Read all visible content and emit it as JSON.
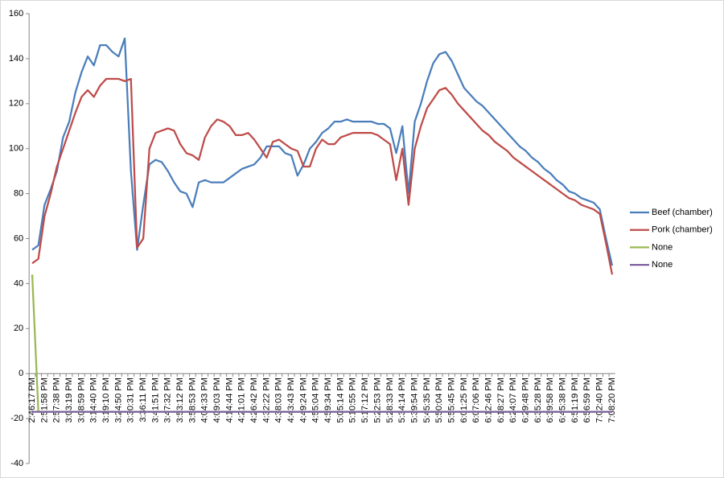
{
  "chart_data": {
    "type": "line",
    "categories": [
      "2:46:17 PM",
      null,
      "2:51:58 PM",
      null,
      "2:57:38 PM",
      null,
      "3:03:19 PM",
      null,
      "3:08:59 PM",
      null,
      "3:14:40 PM",
      null,
      "3:19:10 PM",
      null,
      "3:24:50 PM",
      null,
      "3:30:31 PM",
      null,
      "3:36:11 PM",
      null,
      "3:41:51 PM",
      null,
      "3:47:32 PM",
      null,
      "3:53:12 PM",
      null,
      "3:58:53 PM",
      null,
      "4:04:33 PM",
      null,
      "4:09:03 PM",
      null,
      "4:14:44 PM",
      null,
      "4:21:01 PM",
      null,
      "4:26:42 PM",
      null,
      "4:32:22 PM",
      null,
      "4:38:03 PM",
      null,
      "4:43:43 PM",
      null,
      "4:49:24 PM",
      null,
      "4:55:04 PM",
      null,
      "4:59:34 PM",
      null,
      "5:05:14 PM",
      null,
      "5:10:55 PM",
      null,
      "5:17:12 PM",
      null,
      "5:22:53 PM",
      null,
      "5:28:33 PM",
      null,
      "5:34:14 PM",
      null,
      "5:39:54 PM",
      null,
      "5:45:35 PM",
      null,
      "5:50:04 PM",
      null,
      "5:55:45 PM",
      null,
      "6:01:25 PM",
      null,
      "6:07:06 PM",
      null,
      "6:12:46 PM",
      null,
      "6:18:27 PM",
      null,
      "6:24:07 PM",
      null,
      "6:29:48 PM",
      null,
      "6:35:28 PM",
      null,
      "6:39:58 PM",
      null,
      "6:45:38 PM",
      null,
      "6:51:19 PM",
      null,
      "6:56:59 PM",
      null,
      "7:02:40 PM",
      null,
      "7:08:20 PM"
    ],
    "series": [
      {
        "name": "Beef (chamber)",
        "color": "#4a7ebb",
        "values": [
          55,
          57,
          75,
          82,
          90,
          105,
          112,
          125,
          134,
          141,
          137,
          146,
          146,
          143,
          141,
          149,
          90,
          55,
          75,
          93,
          95,
          94,
          90,
          85,
          81,
          80,
          74,
          85,
          86,
          85,
          85,
          85,
          87,
          89,
          91,
          92,
          93,
          96,
          101,
          101,
          101,
          98,
          97,
          88,
          93,
          100,
          103,
          107,
          109,
          112,
          112,
          113,
          112,
          112,
          112,
          112,
          111,
          111,
          109,
          98,
          110,
          80,
          112,
          120,
          130,
          138,
          142,
          143,
          139,
          133,
          127,
          124,
          121,
          119,
          116,
          113,
          110,
          107,
          104,
          101,
          99,
          96,
          94,
          91,
          89,
          86,
          84,
          81,
          80,
          78,
          77,
          76,
          73,
          60,
          48
        ]
      },
      {
        "name": "Pork (chamber)",
        "color": "#be4b48",
        "values": [
          49,
          51,
          70,
          80,
          92,
          100,
          108,
          116,
          123,
          126,
          123,
          128,
          131,
          131,
          131,
          130,
          131,
          56,
          60,
          100,
          107,
          108,
          109,
          108,
          102,
          98,
          97,
          95,
          105,
          110,
          113,
          112,
          110,
          106,
          106,
          107,
          104,
          100,
          96,
          103,
          104,
          102,
          100,
          99,
          92,
          92,
          100,
          104,
          102,
          102,
          105,
          106,
          107,
          107,
          107,
          107,
          106,
          104,
          102,
          86,
          100,
          75,
          100,
          110,
          118,
          122,
          126,
          127,
          124,
          120,
          117,
          114,
          111,
          108,
          106,
          103,
          101,
          99,
          96,
          94,
          92,
          90,
          88,
          86,
          84,
          82,
          80,
          78,
          77,
          75,
          74,
          73,
          71,
          58,
          44
        ]
      },
      {
        "name": "None",
        "color": "#98b954",
        "values": [
          44,
          -17,
          -17,
          -17,
          -17,
          -17,
          -17,
          -17,
          -17,
          -17,
          -17,
          -17,
          -17,
          -17,
          -17,
          -17,
          -17,
          -17,
          -17,
          -17,
          -17,
          -17,
          -17,
          -17,
          -17,
          -17,
          -17,
          -17,
          -17,
          -17,
          -17,
          -17,
          -17,
          -17,
          -17,
          -17,
          -17,
          -17,
          -17,
          -17,
          -17,
          -17,
          -17,
          -17,
          -17,
          -17,
          -17,
          -17,
          -17,
          -17,
          -17,
          -17,
          -17,
          -17,
          -17,
          -17,
          -17,
          -17,
          -17,
          -17,
          -17,
          -17,
          -17,
          -17,
          -17,
          -17,
          -17,
          -17,
          -17,
          -17,
          -17,
          -17,
          -17,
          -17,
          -17,
          -17,
          -17,
          -17,
          -17,
          -17,
          -17,
          -17,
          -17,
          -17,
          -17,
          -17,
          -17,
          -17,
          -17,
          -17,
          -17,
          -17,
          -17,
          -17,
          -17
        ]
      },
      {
        "name": "None",
        "color": "#7d60a0",
        "values": [
          -17,
          -17,
          -17,
          -17,
          -17,
          -17,
          -17,
          -17,
          -17,
          -17,
          -17,
          -17,
          -17,
          -17,
          -17,
          -17,
          -17,
          -17,
          -17,
          -17,
          -17,
          -17,
          -17,
          -17,
          -17,
          -17,
          -17,
          -17,
          -17,
          -17,
          -17,
          -17,
          -17,
          -17,
          -17,
          -17,
          -17,
          -17,
          -17,
          -17,
          -17,
          -17,
          -17,
          -17,
          -17,
          -17,
          -17,
          -17,
          -17,
          -17,
          -17,
          -17,
          -17,
          -17,
          -17,
          -17,
          -17,
          -17,
          -17,
          -17,
          -17,
          -17,
          -17,
          -17,
          -17,
          -17,
          -17,
          -17,
          -17,
          -17,
          -17,
          -17,
          -17,
          -17,
          -17,
          -17,
          -17,
          -17,
          -17,
          -17,
          -17,
          -17,
          -17,
          -17,
          -17,
          -17,
          -17,
          -17,
          -17,
          -17,
          -17,
          -17,
          -17,
          -17,
          -17
        ]
      }
    ],
    "ylim": [
      -40,
      160
    ],
    "yticks": [
      -40,
      -20,
      0,
      20,
      40,
      60,
      80,
      100,
      120,
      140,
      160
    ],
    "grid": false,
    "legend": "right"
  }
}
